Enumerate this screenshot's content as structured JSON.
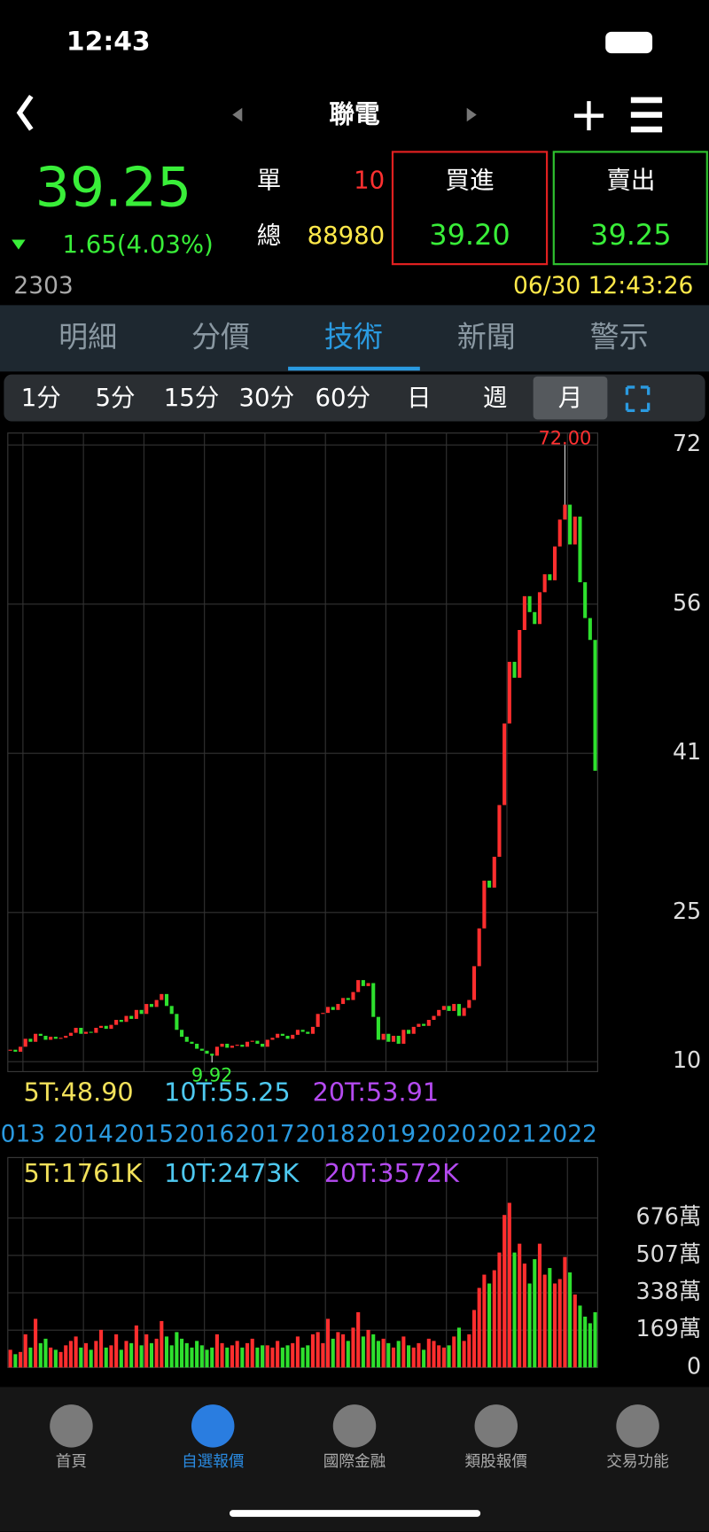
{
  "status_bar": {
    "time": "12:43"
  },
  "header": {
    "title": "聯電"
  },
  "quote": {
    "price": "39.25",
    "change": "1.65(4.03%)",
    "single_label": "單",
    "single_value": "10",
    "total_label": "總",
    "total_value": "88980",
    "bid_label": "買進",
    "bid": "39.20",
    "ask_label": "賣出",
    "ask": "39.25",
    "code": "2303",
    "timestamp": "06/30 12:43:26"
  },
  "tabs": [
    "明細",
    "分價",
    "技術",
    "新聞",
    "警示"
  ],
  "periods": [
    "1分",
    "5分",
    "15分",
    "30分",
    "60分",
    "日",
    "週",
    "月"
  ],
  "chart_data": [
    {
      "type": "candlestick",
      "up_color": "#ff2e2e",
      "down_color": "#2ee02e",
      "close": [
        11.2,
        11.0,
        11.5,
        12.3,
        12.0,
        12.8,
        12.6,
        12.2,
        12.5,
        12.3,
        12.4,
        12.6,
        12.9,
        13.4,
        12.8,
        13.0,
        12.9,
        13.4,
        13.6,
        13.3,
        13.7,
        14.2,
        14.0,
        14.6,
        14.3,
        15.2,
        14.8,
        15.8,
        15.5,
        16.2,
        16.8,
        15.6,
        14.8,
        13.2,
        12.5,
        12.0,
        11.8,
        11.3,
        11.1,
        10.8,
        10.6,
        11.5,
        11.8,
        11.4,
        11.6,
        11.7,
        11.5,
        12.0,
        12.1,
        11.8,
        11.5,
        12.2,
        12.4,
        12.8,
        12.6,
        12.3,
        12.7,
        13.2,
        13.0,
        12.8,
        13.5,
        14.8,
        14.9,
        15.5,
        15.2,
        15.8,
        16.4,
        16.2,
        17.0,
        18.2,
        17.6,
        17.9,
        14.5,
        12.2,
        12.8,
        12.0,
        12.6,
        11.8,
        13.2,
        12.8,
        13.5,
        13.8,
        13.6,
        14.2,
        14.6,
        15.2,
        15.6,
        15.1,
        15.8,
        14.6,
        15.4,
        16.2,
        19.6,
        23.4,
        28.2,
        27.5,
        30.6,
        35.8,
        44.0,
        50.2,
        48.6,
        53.4,
        56.8,
        55.2,
        54.0,
        57.2,
        59.0,
        58.4,
        61.8,
        64.5,
        66.0,
        62.0,
        64.8,
        58.2,
        54.6,
        52.4,
        39.25
      ],
      "xlim": [
        2012.75,
        2022.5
      ],
      "xticks": [
        {
          "value": 2013,
          "label": "013"
        },
        2014,
        2015,
        2016,
        2017,
        2018,
        2019,
        2020,
        2021,
        2022
      ],
      "ylim": [
        9,
        73.2
      ],
      "yticks": [
        72,
        56,
        41,
        25,
        10
      ],
      "grid": true,
      "high": {
        "value": 72,
        "label": "72.00"
      },
      "low": {
        "value": 9.92,
        "label": "9.92"
      },
      "ma_legend": [
        {
          "label": "5T:48.90",
          "color": "#f2e15a"
        },
        {
          "label": "10T:55.25",
          "color": "#4ec9f0"
        },
        {
          "label": "20T:53.91",
          "color": "#b44af0"
        }
      ]
    },
    {
      "type": "bar",
      "values": [
        80,
        60,
        70,
        150,
        90,
        220,
        110,
        130,
        90,
        80,
        70,
        100,
        120,
        140,
        90,
        110,
        80,
        120,
        170,
        90,
        100,
        150,
        80,
        120,
        110,
        190,
        100,
        150,
        110,
        130,
        210,
        140,
        100,
        160,
        130,
        110,
        90,
        120,
        100,
        80,
        90,
        150,
        110,
        90,
        100,
        120,
        90,
        110,
        130,
        90,
        100,
        100,
        90,
        120,
        90,
        100,
        110,
        140,
        90,
        100,
        150,
        160,
        110,
        220,
        130,
        160,
        150,
        120,
        180,
        250,
        140,
        170,
        150,
        120,
        130,
        110,
        90,
        120,
        140,
        100,
        90,
        110,
        80,
        130,
        120,
        100,
        90,
        100,
        140,
        180,
        120,
        150,
        260,
        360,
        420,
        380,
        440,
        520,
        690,
        745,
        520,
        560,
        470,
        380,
        490,
        560,
        420,
        450,
        380,
        400,
        500,
        430,
        330,
        280,
        230,
        200,
        250
      ],
      "ylim": [
        0,
        950
      ],
      "yticks": [
        {
          "value": 676,
          "label": "676萬"
        },
        {
          "value": 507,
          "label": "507萬"
        },
        {
          "value": 338,
          "label": "338萬"
        },
        {
          "value": 169,
          "label": "169萬"
        },
        0
      ],
      "grid": true,
      "ma_legend": [
        {
          "label": "5T:1761K",
          "color": "#f2e15a"
        },
        {
          "label": "10T:2473K",
          "color": "#4ec9f0"
        },
        {
          "label": "20T:3572K",
          "color": "#b44af0"
        }
      ]
    }
  ],
  "nav": [
    "首頁",
    "自選報價",
    "國際金融",
    "類股報價",
    "交易功能"
  ]
}
